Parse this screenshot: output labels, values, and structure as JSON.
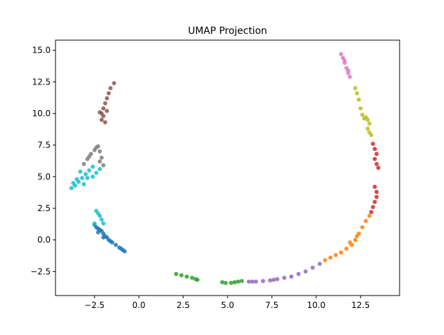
{
  "chart_data": {
    "type": "scatter",
    "title": "UMAP Projection",
    "xlabel": "",
    "ylabel": "",
    "xlim": [
      -4.7,
      14.7
    ],
    "ylim": [
      -4.4,
      15.8
    ],
    "xticks": [
      -2.5,
      0.0,
      2.5,
      5.0,
      7.5,
      10.0,
      12.5
    ],
    "xtick_labels": [
      "−2.5",
      "0.0",
      "2.5",
      "5.0",
      "7.5",
      "10.0",
      "12.5"
    ],
    "yticks": [
      -2.5,
      0.0,
      2.5,
      5.0,
      7.5,
      10.0,
      12.5,
      15.0
    ],
    "ytick_labels": [
      "−2.5",
      "0.0",
      "2.5",
      "5.0",
      "7.5",
      "10.0",
      "12.5",
      "15.0"
    ],
    "grid": false,
    "legend": "none",
    "marker_size": 3,
    "series": [
      {
        "color": "#1f77b4",
        "points": [
          [
            -2.5,
            1.2
          ],
          [
            -2.4,
            1.0
          ],
          [
            -2.3,
            0.9
          ],
          [
            -2.2,
            0.8
          ],
          [
            -2.1,
            0.7
          ],
          [
            -2.0,
            0.5
          ],
          [
            -1.9,
            0.3
          ],
          [
            -1.8,
            0.2
          ],
          [
            -1.7,
            0.0
          ],
          [
            -1.5,
            -0.2
          ],
          [
            -1.3,
            -0.4
          ],
          [
            -1.1,
            -0.6
          ],
          [
            -0.9,
            -0.8
          ],
          [
            -0.8,
            -0.9
          ],
          [
            -2.3,
            0.6
          ],
          [
            -2.0,
            0.2
          ],
          [
            -1.6,
            -0.1
          ],
          [
            -1.0,
            -0.7
          ]
        ]
      },
      {
        "color": "#ff7f0e",
        "points": [
          [
            10.5,
            -1.6
          ],
          [
            10.8,
            -1.4
          ],
          [
            11.1,
            -1.2
          ],
          [
            11.4,
            -1.0
          ],
          [
            11.7,
            -0.7
          ],
          [
            12.0,
            -0.4
          ],
          [
            12.2,
            0.0
          ],
          [
            12.4,
            0.5
          ],
          [
            12.6,
            1.0
          ],
          [
            12.8,
            1.5
          ],
          [
            13.0,
            1.9
          ],
          [
            11.9,
            -0.2
          ],
          [
            12.3,
            0.3
          ]
        ]
      },
      {
        "color": "#2ca02c",
        "points": [
          [
            2.1,
            -2.7
          ],
          [
            2.4,
            -2.8
          ],
          [
            2.7,
            -2.9
          ],
          [
            3.0,
            -3.0
          ],
          [
            3.2,
            -3.1
          ],
          [
            3.3,
            -3.15
          ],
          [
            4.7,
            -3.35
          ],
          [
            4.9,
            -3.4
          ],
          [
            5.2,
            -3.4
          ],
          [
            5.4,
            -3.35
          ],
          [
            5.6,
            -3.3
          ],
          [
            5.8,
            -3.25
          ]
        ]
      },
      {
        "color": "#d62728",
        "points": [
          [
            13.1,
            2.2
          ],
          [
            13.2,
            2.6
          ],
          [
            13.3,
            3.0
          ],
          [
            13.4,
            3.4
          ],
          [
            13.4,
            3.8
          ],
          [
            13.3,
            4.2
          ],
          [
            13.5,
            5.7
          ],
          [
            13.4,
            6.0
          ],
          [
            13.3,
            6.4
          ],
          [
            13.4,
            6.8
          ],
          [
            13.3,
            7.2
          ],
          [
            13.2,
            7.6
          ]
        ]
      },
      {
        "color": "#9467bd",
        "points": [
          [
            6.2,
            -3.3
          ],
          [
            6.6,
            -3.3
          ],
          [
            7.0,
            -3.25
          ],
          [
            7.4,
            -3.2
          ],
          [
            7.8,
            -3.1
          ],
          [
            8.2,
            -3.0
          ],
          [
            8.6,
            -2.9
          ],
          [
            9.0,
            -2.7
          ],
          [
            9.4,
            -2.5
          ],
          [
            9.8,
            -2.2
          ],
          [
            10.2,
            -1.9
          ],
          [
            6.4,
            -3.3
          ],
          [
            7.6,
            -3.15
          ]
        ]
      },
      {
        "color": "#8c564b",
        "points": [
          [
            -2.1,
            9.5
          ],
          [
            -2.1,
            10.0
          ],
          [
            -2.0,
            10.4
          ],
          [
            -1.9,
            10.8
          ],
          [
            -1.8,
            11.2
          ],
          [
            -1.7,
            11.6
          ],
          [
            -1.6,
            12.0
          ],
          [
            -1.4,
            12.4
          ],
          [
            -2.0,
            9.8
          ],
          [
            -1.8,
            10.2
          ],
          [
            -2.2,
            10.1
          ],
          [
            -1.9,
            9.3
          ]
        ]
      },
      {
        "color": "#e377c2",
        "points": [
          [
            11.4,
            14.7
          ],
          [
            11.5,
            14.4
          ],
          [
            11.6,
            14.0
          ],
          [
            11.7,
            13.6
          ],
          [
            11.8,
            13.2
          ],
          [
            11.9,
            12.9
          ],
          [
            11.6,
            14.2
          ],
          [
            11.8,
            13.4
          ]
        ]
      },
      {
        "color": "#7f7f7f",
        "points": [
          [
            -3.1,
            6.0
          ],
          [
            -2.9,
            6.4
          ],
          [
            -2.7,
            6.8
          ],
          [
            -2.5,
            7.1
          ],
          [
            -2.3,
            7.4
          ],
          [
            -2.2,
            7.0
          ],
          [
            -2.1,
            6.5
          ],
          [
            -2.2,
            6.2
          ],
          [
            -2.0,
            5.9
          ],
          [
            -2.8,
            6.6
          ],
          [
            -2.4,
            7.3
          ]
        ]
      },
      {
        "color": "#bcbd22",
        "points": [
          [
            12.2,
            12.0
          ],
          [
            12.3,
            11.6
          ],
          [
            12.4,
            11.1
          ],
          [
            12.5,
            10.4
          ],
          [
            12.6,
            9.9
          ],
          [
            12.7,
            9.6
          ],
          [
            12.9,
            9.5
          ],
          [
            13.0,
            9.2
          ],
          [
            12.9,
            8.8
          ],
          [
            13.0,
            8.5
          ],
          [
            13.1,
            8.3
          ],
          [
            12.8,
            9.7
          ]
        ]
      },
      {
        "color": "#17becf",
        "points": [
          [
            -3.8,
            4.1
          ],
          [
            -3.6,
            4.3
          ],
          [
            -3.4,
            4.6
          ],
          [
            -3.2,
            4.9
          ],
          [
            -3.0,
            5.2
          ],
          [
            -2.8,
            5.5
          ],
          [
            -2.6,
            5.8
          ],
          [
            -2.4,
            5.3
          ],
          [
            -2.2,
            5.6
          ],
          [
            -3.5,
            4.8
          ],
          [
            -3.3,
            5.4
          ],
          [
            -3.1,
            4.4
          ],
          [
            -2.9,
            4.9
          ],
          [
            -2.6,
            5.0
          ],
          [
            -3.7,
            4.5
          ],
          [
            -2.4,
            2.3
          ],
          [
            -2.3,
            2.1
          ],
          [
            -2.2,
            1.9
          ],
          [
            -2.1,
            1.6
          ],
          [
            -2.0,
            1.3
          ],
          [
            -2.5,
            1.3
          ]
        ]
      }
    ]
  }
}
